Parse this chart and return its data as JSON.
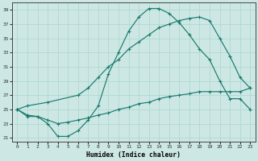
{
  "title": "",
  "xlabel": "Humidex (Indice chaleur)",
  "ylabel": "",
  "xlim": [
    -0.5,
    23.5
  ],
  "ylim": [
    20.5,
    40
  ],
  "yticks": [
    21,
    23,
    25,
    27,
    29,
    31,
    33,
    35,
    37,
    39
  ],
  "xticks": [
    0,
    1,
    2,
    3,
    4,
    5,
    6,
    7,
    8,
    9,
    10,
    11,
    12,
    13,
    14,
    15,
    16,
    17,
    18,
    19,
    20,
    21,
    22,
    23
  ],
  "background_color": "#cde8e4",
  "grid_color": "#b0d8d0",
  "line_color": "#1a7a6e",
  "line1_x": [
    0,
    1,
    2,
    3,
    4,
    5,
    6,
    7,
    8,
    9,
    10,
    11,
    12,
    13,
    14,
    15,
    16,
    17,
    18,
    19,
    20,
    21,
    22,
    23
  ],
  "line1_y": [
    25.0,
    24.0,
    24.0,
    23.0,
    21.2,
    21.2,
    22.0,
    23.5,
    25.5,
    30.0,
    33.0,
    36.0,
    38.0,
    39.2,
    39.2,
    38.5,
    37.2,
    35.5,
    33.5,
    32.0,
    29.0,
    26.5,
    26.5,
    25.0
  ],
  "line2_x": [
    0,
    1,
    3,
    6,
    7,
    8,
    9,
    10,
    11,
    12,
    13,
    14,
    15,
    16,
    17,
    18,
    19,
    20,
    21,
    22,
    23
  ],
  "line2_y": [
    25.0,
    25.5,
    26.0,
    27.0,
    28.0,
    29.5,
    31.0,
    32.0,
    33.5,
    34.5,
    35.5,
    36.5,
    37.0,
    37.5,
    37.8,
    38.0,
    37.5,
    35.0,
    32.5,
    29.5,
    28.0
  ],
  "line3_x": [
    0,
    1,
    2,
    3,
    4,
    5,
    6,
    7,
    8,
    9,
    10,
    11,
    12,
    13,
    14,
    15,
    16,
    17,
    18,
    19,
    20,
    21,
    22,
    23
  ],
  "line3_y": [
    25.0,
    24.2,
    24.0,
    23.5,
    23.0,
    23.2,
    23.5,
    23.8,
    24.2,
    24.5,
    25.0,
    25.3,
    25.8,
    26.0,
    26.5,
    26.8,
    27.0,
    27.2,
    27.5,
    27.5,
    27.5,
    27.5,
    27.5,
    28.0
  ]
}
